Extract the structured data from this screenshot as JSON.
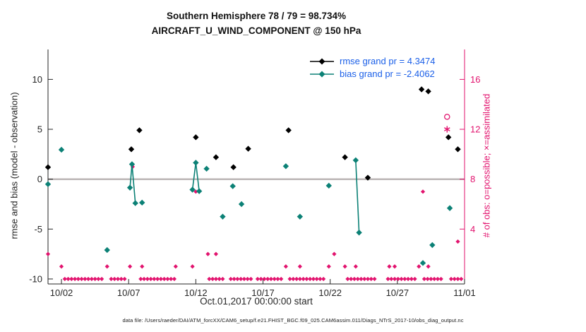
{
  "title": {
    "line1": "Southern Hemisphere 78 / 79 = 98.734%",
    "line2": "AIRCRAFT_U_WIND_COMPONENT @ 150 hPa"
  },
  "legend": {
    "rmse_label": "rmse grand pr = 4.3474",
    "bias_label": "bias grand pr = -2.4062"
  },
  "axes": {
    "ylabel_left": "rmse and bias (model - observation)",
    "ylabel_right": "# of obs: o=possible; ×=assimilated",
    "xlabel": "Oct.01,2017 00:00:00 start"
  },
  "footer": "data file: /Users/raeder/DAI/ATM_forcXX/CAM6_setup/f.e21.FHIST_BGC.f09_025.CAM6assim.011/Diags_NTrS_2017-10/obs_diag_output.nc",
  "colors": {
    "rmse": "#000000",
    "bias": "#0c8176",
    "obs": "#e2136e",
    "legend_text": "#1a5fe8",
    "axis": "#262626",
    "zero_line": "#b8b2b2"
  },
  "chart_data": {
    "type": "scatter",
    "title": "Southern Hemisphere 78 / 79 = 98.734% — AIRCRAFT_U_WIND_COMPONENT @ 150 hPa",
    "xlabel": "Oct.01,2017 00:00:00 start",
    "ylabel_left": "rmse and bias (model - observation)",
    "ylabel_right": "# of obs: o=possible; ×=assimilated",
    "xlim_days": [
      1,
      32
    ],
    "ylim_left": [
      -10.5,
      13
    ],
    "right_axis_map": "count = 0.8 * left_value + 8",
    "connect_gap": 0.3,
    "x_ticks": [
      {
        "day": 2,
        "label": "10/02"
      },
      {
        "day": 7,
        "label": "10/07"
      },
      {
        "day": 12,
        "label": "10/12"
      },
      {
        "day": 17,
        "label": "10/17"
      },
      {
        "day": 22,
        "label": "10/22"
      },
      {
        "day": 27,
        "label": "10/27"
      },
      {
        "day": 32,
        "label": "11/01"
      }
    ],
    "y_ticks_left": [
      -10,
      -5,
      0,
      5,
      10
    ],
    "y_ticks_right": [
      4,
      8,
      12,
      16
    ],
    "rmse": {
      "grand": 4.3474,
      "points": [
        [
          1,
          1.2
        ],
        [
          7.2,
          3.0
        ],
        [
          7.8,
          4.9
        ],
        [
          12,
          4.2
        ],
        [
          13.5,
          2.2
        ],
        [
          14.8,
          1.2
        ],
        [
          15.9,
          3.05
        ],
        [
          18.9,
          4.9
        ],
        [
          23.1,
          2.2
        ],
        [
          24.8,
          0.15
        ],
        [
          28.8,
          9.0
        ],
        [
          29.3,
          8.8
        ],
        [
          30.8,
          4.2
        ],
        [
          31.5,
          3.0
        ]
      ]
    },
    "bias": {
      "grand": -2.4062,
      "points": [
        [
          1,
          -0.5
        ],
        [
          2,
          2.95
        ],
        [
          5.4,
          -7.1
        ],
        [
          7.1,
          -0.85
        ],
        [
          7.25,
          1.5
        ],
        [
          7.5,
          -2.4
        ],
        [
          8,
          -2.35
        ],
        [
          11.75,
          -1.05
        ],
        [
          12,
          1.65
        ],
        [
          12.25,
          -1.2
        ],
        [
          12.8,
          1.05
        ],
        [
          14,
          -3.75
        ],
        [
          14.75,
          -0.7
        ],
        [
          15.4,
          -2.5
        ],
        [
          18.7,
          1.3
        ],
        [
          19.75,
          -3.75
        ],
        [
          21.9,
          -0.65
        ],
        [
          23.9,
          1.9
        ],
        [
          24.15,
          -5.35
        ],
        [
          28.9,
          -8.4
        ],
        [
          29.6,
          -6.6
        ],
        [
          30.9,
          -2.9
        ]
      ]
    },
    "obs": {
      "step": 0.25,
      "zero_runs": [
        [
          2.25,
          5.2
        ],
        [
          5.7,
          6.9
        ],
        [
          7.9,
          10.6
        ],
        [
          13,
          14.2
        ],
        [
          14.6,
          16.1
        ],
        [
          16.6,
          18.4
        ],
        [
          19,
          21.6
        ],
        [
          23.3,
          25.4
        ],
        [
          26.3,
          28.3
        ],
        [
          29,
          30.4
        ],
        [
          31,
          31.9
        ]
      ],
      "points": [
        [
          1,
          2
        ],
        [
          2,
          1
        ],
        [
          5.4,
          1
        ],
        [
          7.1,
          1
        ],
        [
          7.3,
          9
        ],
        [
          8,
          1
        ],
        [
          10.5,
          1
        ],
        [
          11.75,
          1
        ],
        [
          12,
          7
        ],
        [
          12.9,
          2
        ],
        [
          13.5,
          2
        ],
        [
          18.7,
          1
        ],
        [
          19.75,
          1
        ],
        [
          21.9,
          1
        ],
        [
          22.3,
          2
        ],
        [
          23.1,
          1
        ],
        [
          23.9,
          1
        ],
        [
          26.4,
          1
        ],
        [
          26.8,
          1
        ],
        [
          28.6,
          1
        ],
        [
          28.9,
          7
        ],
        [
          29.3,
          1
        ],
        [
          30.7,
          13,
          "o"
        ],
        [
          30.7,
          12,
          "*"
        ],
        [
          31.5,
          3
        ]
      ]
    }
  }
}
